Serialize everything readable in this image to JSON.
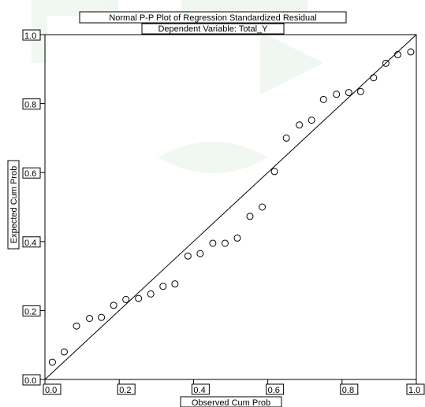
{
  "chart_data": {
    "type": "scatter",
    "title": "Normal P-P Plot of Regression Standardized Residual",
    "subtitle": "Dependent Variable: Total_Y",
    "xlabel": "Observed Cum Prob",
    "ylabel": "Expected Cum Prob",
    "xlim": [
      0.0,
      1.0
    ],
    "ylim": [
      0.0,
      1.0
    ],
    "xticks": [
      "0.0",
      "0.2",
      "0.4",
      "0.6",
      "0.8",
      "1.0"
    ],
    "yticks": [
      "0.0",
      "0.2",
      "0.4",
      "0.6",
      "0.8",
      "1.0"
    ],
    "reference_line": [
      [
        0.0,
        0.0
      ],
      [
        1.0,
        1.0
      ]
    ],
    "grid": false,
    "points": [
      [
        0.02,
        0.05
      ],
      [
        0.052,
        0.08
      ],
      [
        0.085,
        0.155
      ],
      [
        0.12,
        0.177
      ],
      [
        0.152,
        0.18
      ],
      [
        0.185,
        0.215
      ],
      [
        0.218,
        0.232
      ],
      [
        0.252,
        0.235
      ],
      [
        0.285,
        0.248
      ],
      [
        0.318,
        0.27
      ],
      [
        0.35,
        0.277
      ],
      [
        0.385,
        0.358
      ],
      [
        0.418,
        0.365
      ],
      [
        0.452,
        0.395
      ],
      [
        0.485,
        0.395
      ],
      [
        0.518,
        0.41
      ],
      [
        0.552,
        0.473
      ],
      [
        0.585,
        0.5
      ],
      [
        0.618,
        0.603
      ],
      [
        0.65,
        0.7
      ],
      [
        0.685,
        0.738
      ],
      [
        0.718,
        0.752
      ],
      [
        0.75,
        0.812
      ],
      [
        0.785,
        0.827
      ],
      [
        0.818,
        0.832
      ],
      [
        0.85,
        0.835
      ],
      [
        0.885,
        0.875
      ],
      [
        0.918,
        0.917
      ],
      [
        0.95,
        0.942
      ],
      [
        0.985,
        0.95
      ]
    ],
    "colors": {
      "marker": "#000000",
      "line": "#000000",
      "background": "#ffffff"
    }
  }
}
